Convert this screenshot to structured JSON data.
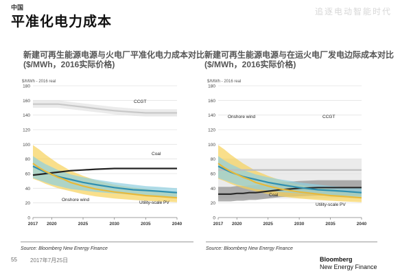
{
  "header": {
    "region": "中国",
    "title": "平准化电力成本",
    "watermark": "追逐电动智能时代"
  },
  "chart_data": [
    {
      "type": "line",
      "title": "新建可再生能源电源与火电厂平准化电力成本对比\n($/MWh，2016实际价格)",
      "ylabel": "$/MWh - 2016 real",
      "ylim": [
        0,
        180
      ],
      "yticks": [
        0,
        20,
        40,
        60,
        80,
        100,
        120,
        140,
        160,
        180
      ],
      "xlim": [
        2017,
        2040
      ],
      "xticks": [
        2017,
        2020,
        2025,
        2030,
        2035,
        2040
      ],
      "grid": true,
      "x": [
        2017,
        2018,
        2019,
        2020,
        2021,
        2022,
        2023,
        2025,
        2027,
        2030,
        2033,
        2035,
        2037,
        2040
      ],
      "series": [
        {
          "name": "CCGT",
          "color": "#c8c8c8",
          "values": [
            155,
            155,
            155,
            155,
            155,
            154,
            153,
            151,
            149,
            146,
            144,
            143,
            143,
            143
          ]
        },
        {
          "name": "Coal",
          "color": "#222222",
          "values": [
            58,
            59,
            60,
            61,
            62,
            63,
            64,
            65,
            66,
            67,
            67,
            67,
            67,
            67
          ]
        },
        {
          "name": "Onshore wind",
          "color": "#2f8fb0",
          "values": [
            70,
            66,
            62,
            59,
            56,
            54,
            52,
            48,
            45,
            41,
            38,
            37,
            36,
            34
          ]
        },
        {
          "name": "Utility-scale PV",
          "color": "#e8b93a",
          "values": [
            74,
            68,
            63,
            59,
            55,
            52,
            48,
            43,
            39,
            35,
            32,
            30,
            29,
            27
          ]
        }
      ],
      "bands": [
        {
          "of": "CCGT",
          "color": "#e3e3e3",
          "low": [
            150,
            150,
            150,
            150,
            150,
            149,
            148,
            146,
            144,
            141,
            139,
            138,
            138,
            138
          ],
          "high": [
            160,
            160,
            160,
            160,
            160,
            159,
            158,
            156,
            154,
            151,
            149,
            148,
            148,
            148
          ]
        },
        {
          "of": "Utility-scale PV",
          "color": "#f6d25a",
          "low": [
            53,
            50,
            46,
            43,
            40,
            38,
            36,
            32,
            29,
            26,
            24,
            23,
            22,
            21
          ],
          "high": [
            99,
            93,
            86,
            80,
            74,
            69,
            64,
            57,
            51,
            45,
            41,
            39,
            37,
            34
          ]
        },
        {
          "of": "Onshore wind",
          "color": "#8fcfe0",
          "low": [
            54,
            51,
            48,
            45,
            43,
            41,
            39,
            37,
            35,
            33,
            31,
            30,
            29,
            28
          ],
          "high": [
            84,
            78,
            73,
            69,
            65,
            62,
            59,
            55,
            52,
            48,
            45,
            43,
            42,
            40
          ]
        }
      ],
      "annotations": [
        "CCGT",
        "Coal",
        "Onshore wind",
        "Utility-scale PV"
      ]
    },
    {
      "type": "line",
      "title": "新建可再生能源电源与在运火电厂发电边际成本对比\n($/MWh，2016实际价格)",
      "ylabel": "$/MWh - 2016 real",
      "ylim": [
        0,
        180
      ],
      "yticks": [
        0,
        20,
        40,
        60,
        80,
        100,
        120,
        140,
        160,
        180
      ],
      "xlim": [
        2017,
        2040
      ],
      "xticks": [
        2017,
        2020,
        2025,
        2030,
        2035,
        2040
      ],
      "grid": true,
      "x": [
        2017,
        2018,
        2019,
        2020,
        2021,
        2022,
        2023,
        2025,
        2027,
        2030,
        2033,
        2035,
        2037,
        2040
      ],
      "series": [
        {
          "name": "CCGT",
          "color": "#bdbdbd",
          "values": [
            65,
            65,
            65,
            65,
            65,
            65,
            65,
            65,
            65,
            65,
            65,
            65,
            65,
            65
          ]
        },
        {
          "name": "Coal",
          "color": "#2a2a2a",
          "values": [
            32,
            32,
            32,
            33,
            33,
            34,
            34,
            36,
            38,
            40,
            41,
            41,
            41,
            41
          ]
        },
        {
          "name": "Onshore wind",
          "color": "#2f8fb0",
          "values": [
            70,
            66,
            62,
            59,
            56,
            54,
            52,
            48,
            45,
            41,
            38,
            37,
            36,
            34
          ]
        },
        {
          "name": "Utility-scale PV",
          "color": "#e8b93a",
          "values": [
            74,
            68,
            63,
            59,
            55,
            52,
            48,
            43,
            39,
            35,
            32,
            30,
            29,
            27
          ]
        }
      ],
      "bands": [
        {
          "of": "CCGT",
          "color": "#e3e3e3",
          "low": [
            26,
            26,
            26,
            26,
            26,
            26,
            26,
            26,
            26,
            26,
            26,
            26,
            26,
            26
          ],
          "high": [
            80,
            80,
            80,
            80,
            80,
            80,
            80,
            80,
            80,
            80,
            80,
            80,
            80,
            80
          ]
        },
        {
          "of": "Coal",
          "color": "#8e8e8e",
          "low": [
            22,
            22,
            22,
            23,
            23,
            24,
            24,
            26,
            28,
            29,
            30,
            30,
            30,
            30
          ],
          "high": [
            42,
            42,
            42,
            43,
            43,
            44,
            44,
            46,
            48,
            50,
            51,
            51,
            51,
            51
          ]
        },
        {
          "of": "Utility-scale PV",
          "color": "#f6d25a",
          "low": [
            53,
            50,
            46,
            43,
            40,
            38,
            36,
            32,
            29,
            26,
            24,
            23,
            22,
            21
          ],
          "high": [
            99,
            93,
            86,
            80,
            74,
            69,
            64,
            57,
            51,
            45,
            41,
            39,
            37,
            34
          ]
        },
        {
          "of": "Onshore wind",
          "color": "#8fcfe0",
          "low": [
            54,
            51,
            48,
            45,
            43,
            41,
            39,
            37,
            35,
            33,
            31,
            30,
            29,
            28
          ],
          "high": [
            84,
            78,
            73,
            69,
            65,
            62,
            59,
            55,
            52,
            48,
            45,
            43,
            42,
            40
          ]
        }
      ],
      "annotations": [
        "CCGT",
        "Coal",
        "Onshore wind",
        "Utility-scale PV"
      ]
    }
  ],
  "footer": {
    "source_left": "Source: Bloomberg New Energy Finance",
    "source_right": "Source: Bloomberg New Energy Finance",
    "page_number": "55",
    "date": "2017年7月25日",
    "brand_line1": "Bloomberg",
    "brand_line2": "New Energy Finance"
  }
}
